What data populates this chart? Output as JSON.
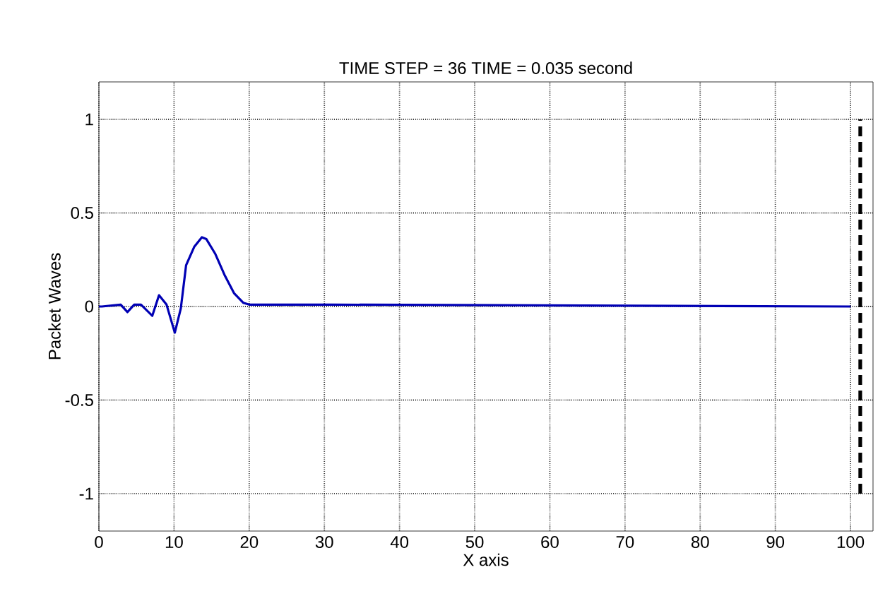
{
  "chart_data": {
    "type": "line",
    "title": "TIME STEP = 36   TIME = 0.035 second",
    "xlabel": "X axis",
    "ylabel": "Packet Waves",
    "xlim": [
      0,
      103
    ],
    "ylim": [
      -1.2,
      1.2
    ],
    "xticks": [
      0,
      10,
      20,
      30,
      40,
      50,
      60,
      70,
      80,
      90,
      100
    ],
    "yticks": [
      -1,
      -0.5,
      0,
      0.5,
      1
    ],
    "grid": true,
    "marker": "none",
    "series": [
      {
        "color": "#0000b4",
        "line_style": "solid",
        "x": [
          0,
          0.4,
          2.9,
          3.8,
          4.7,
          5.6,
          7.1,
          8.0,
          9.0,
          10.1,
          10.9,
          11.6,
          12.7,
          13.7,
          14.3,
          15.5,
          16.7,
          18.0,
          19.2,
          20,
          31,
          100
        ],
        "values": [
          0,
          0,
          0.01,
          -0.03,
          0.01,
          0.01,
          -0.05,
          0.06,
          0.01,
          -0.14,
          -0.01,
          0.22,
          0.32,
          0.37,
          0.36,
          0.28,
          0.17,
          0.07,
          0.02,
          0.01,
          0.01,
          0
        ]
      },
      {
        "color": "#000000",
        "line_style": "dashed",
        "x": [
          101.3,
          101.3
        ],
        "values": [
          -1,
          1
        ]
      }
    ]
  }
}
